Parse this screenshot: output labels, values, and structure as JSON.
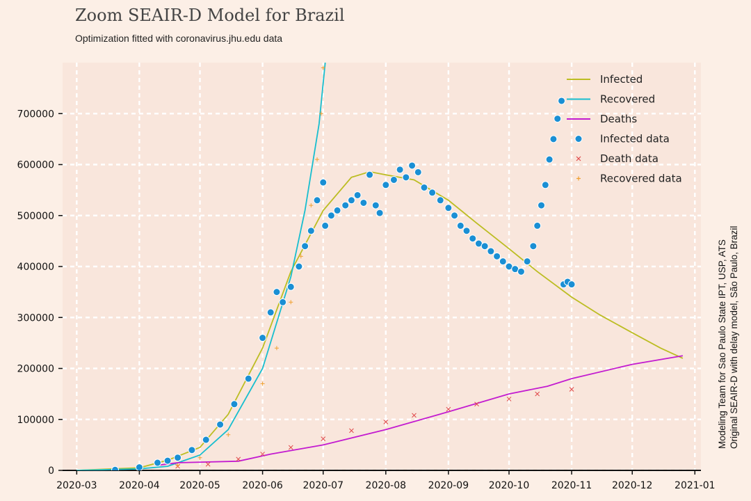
{
  "chart_data": {
    "type": "line",
    "title": "Zoom SEAIR-D Model for Brazil",
    "subtitle": "Optimization fitted with coronavirus.jhu.edu data",
    "side_note": [
      "Modeling Team for Sao Paulo State IPT, USP, ATS",
      "Original SEAIR-D with delay model, São Paulo, Brazil"
    ],
    "x_ticks": [
      "2020-03",
      "2020-04",
      "2020-05",
      "2020-06",
      "2020-07",
      "2020-08",
      "2020-09",
      "2020-10",
      "2020-11",
      "2020-12",
      "2021-01"
    ],
    "y_ticks": [
      "0",
      "100000",
      "200000",
      "300000",
      "400000",
      "500000",
      "600000",
      "700000"
    ],
    "ylim": [
      0,
      800000
    ],
    "xlim": [
      "2020-02-23",
      "2021-01-04"
    ],
    "grid": true,
    "legend_position": "top-right",
    "legend": [
      "Infected",
      "Recovered",
      "Deaths",
      "Infected data",
      "Death data",
      "Recovered data"
    ],
    "colors": {
      "infected": "#bcbd22",
      "recovered": "#17becf",
      "deaths": "#c31bd0",
      "infected_data": "#1a8fd4",
      "death_data": "#e0484a",
      "recovered_data": "#f0a030"
    },
    "series": {
      "infected_model": [
        [
          "2020-03-01",
          0
        ],
        [
          "2020-04-01",
          5000
        ],
        [
          "2020-04-15",
          20000
        ],
        [
          "2020-05-01",
          45000
        ],
        [
          "2020-05-15",
          110000
        ],
        [
          "2020-06-01",
          240000
        ],
        [
          "2020-06-15",
          390000
        ],
        [
          "2020-07-01",
          510000
        ],
        [
          "2020-07-15",
          575000
        ],
        [
          "2020-07-24",
          586000
        ],
        [
          "2020-08-01",
          580000
        ],
        [
          "2020-08-15",
          570000
        ],
        [
          "2020-09-01",
          530000
        ],
        [
          "2020-09-15",
          485000
        ],
        [
          "2020-10-01",
          435000
        ],
        [
          "2020-10-15",
          390000
        ],
        [
          "2020-11-01",
          340000
        ],
        [
          "2020-11-15",
          305000
        ],
        [
          "2020-12-01",
          270000
        ],
        [
          "2020-12-15",
          240000
        ],
        [
          "2020-12-26",
          220000
        ]
      ],
      "recovered_model": [
        [
          "2020-03-01",
          0
        ],
        [
          "2020-04-01",
          3000
        ],
        [
          "2020-04-15",
          8000
        ],
        [
          "2020-05-01",
          30000
        ],
        [
          "2020-05-15",
          80000
        ],
        [
          "2020-06-01",
          200000
        ],
        [
          "2020-06-15",
          380000
        ],
        [
          "2020-06-22",
          510000
        ],
        [
          "2020-06-29",
          680000
        ],
        [
          "2020-07-02",
          800000
        ]
      ],
      "deaths_model": [
        [
          "2020-04-10",
          10000
        ],
        [
          "2020-04-20",
          15000
        ],
        [
          "2020-05-20",
          18000
        ],
        [
          "2020-06-05",
          32000
        ],
        [
          "2020-07-01",
          50000
        ],
        [
          "2020-08-01",
          80000
        ],
        [
          "2020-09-01",
          115000
        ],
        [
          "2020-10-01",
          150000
        ],
        [
          "2020-10-20",
          165000
        ],
        [
          "2020-11-01",
          180000
        ],
        [
          "2020-12-01",
          208000
        ],
        [
          "2020-12-26",
          225000
        ]
      ],
      "infected_data": [
        [
          "2020-03-20",
          1000
        ],
        [
          "2020-04-01",
          6000
        ],
        [
          "2020-04-10",
          15000
        ],
        [
          "2020-04-15",
          19000
        ],
        [
          "2020-04-20",
          25000
        ],
        [
          "2020-04-27",
          40000
        ],
        [
          "2020-05-04",
          60000
        ],
        [
          "2020-05-11",
          90000
        ],
        [
          "2020-05-18",
          130000
        ],
        [
          "2020-05-25",
          180000
        ],
        [
          "2020-06-01",
          260000
        ],
        [
          "2020-06-05",
          310000
        ],
        [
          "2020-06-08",
          350000
        ],
        [
          "2020-06-11",
          330000
        ],
        [
          "2020-06-15",
          360000
        ],
        [
          "2020-06-19",
          400000
        ],
        [
          "2020-06-22",
          440000
        ],
        [
          "2020-06-25",
          470000
        ],
        [
          "2020-06-28",
          530000
        ],
        [
          "2020-07-01",
          565000
        ],
        [
          "2020-07-02",
          480000
        ],
        [
          "2020-07-05",
          500000
        ],
        [
          "2020-07-08",
          510000
        ],
        [
          "2020-07-12",
          520000
        ],
        [
          "2020-07-15",
          530000
        ],
        [
          "2020-07-18",
          540000
        ],
        [
          "2020-07-21",
          525000
        ],
        [
          "2020-07-24",
          580000
        ],
        [
          "2020-07-27",
          520000
        ],
        [
          "2020-07-29",
          505000
        ],
        [
          "2020-08-01",
          560000
        ],
        [
          "2020-08-05",
          570000
        ],
        [
          "2020-08-08",
          590000
        ],
        [
          "2020-08-11",
          575000
        ],
        [
          "2020-08-14",
          598000
        ],
        [
          "2020-08-17",
          585000
        ],
        [
          "2020-08-20",
          555000
        ],
        [
          "2020-08-24",
          545000
        ],
        [
          "2020-08-28",
          530000
        ],
        [
          "2020-09-01",
          515000
        ],
        [
          "2020-09-04",
          500000
        ],
        [
          "2020-09-07",
          480000
        ],
        [
          "2020-09-10",
          470000
        ],
        [
          "2020-09-13",
          455000
        ],
        [
          "2020-09-16",
          445000
        ],
        [
          "2020-09-19",
          440000
        ],
        [
          "2020-09-22",
          430000
        ],
        [
          "2020-09-25",
          420000
        ],
        [
          "2020-09-28",
          410000
        ],
        [
          "2020-10-01",
          400000
        ],
        [
          "2020-10-04",
          395000
        ],
        [
          "2020-10-07",
          390000
        ],
        [
          "2020-10-10",
          410000
        ],
        [
          "2020-10-13",
          440000
        ],
        [
          "2020-10-15",
          480000
        ],
        [
          "2020-10-17",
          520000
        ],
        [
          "2020-10-19",
          560000
        ],
        [
          "2020-10-21",
          610000
        ],
        [
          "2020-10-23",
          650000
        ],
        [
          "2020-10-25",
          690000
        ],
        [
          "2020-10-27",
          725000
        ],
        [
          "2020-10-28",
          365000
        ],
        [
          "2020-10-30",
          370000
        ],
        [
          "2020-11-01",
          365000
        ]
      ],
      "death_data": [
        [
          "2020-04-01",
          3000
        ],
        [
          "2020-04-20",
          8000
        ],
        [
          "2020-05-05",
          12000
        ],
        [
          "2020-05-20",
          22000
        ],
        [
          "2020-06-01",
          32000
        ],
        [
          "2020-06-15",
          45000
        ],
        [
          "2020-07-01",
          62000
        ],
        [
          "2020-07-15",
          78000
        ],
        [
          "2020-08-01",
          95000
        ],
        [
          "2020-08-15",
          108000
        ],
        [
          "2020-09-01",
          120000
        ],
        [
          "2020-09-15",
          130000
        ],
        [
          "2020-10-01",
          140000
        ],
        [
          "2020-10-15",
          150000
        ],
        [
          "2020-11-01",
          159000
        ]
      ],
      "recovered_data": [
        [
          "2020-04-01",
          1000
        ],
        [
          "2020-04-20",
          10000
        ],
        [
          "2020-05-01",
          25000
        ],
        [
          "2020-05-15",
          70000
        ],
        [
          "2020-06-01",
          170000
        ],
        [
          "2020-06-08",
          240000
        ],
        [
          "2020-06-15",
          330000
        ],
        [
          "2020-06-20",
          420000
        ],
        [
          "2020-06-25",
          520000
        ],
        [
          "2020-06-28",
          610000
        ],
        [
          "2020-06-30",
          700000
        ],
        [
          "2020-07-01",
          790000
        ]
      ]
    }
  }
}
